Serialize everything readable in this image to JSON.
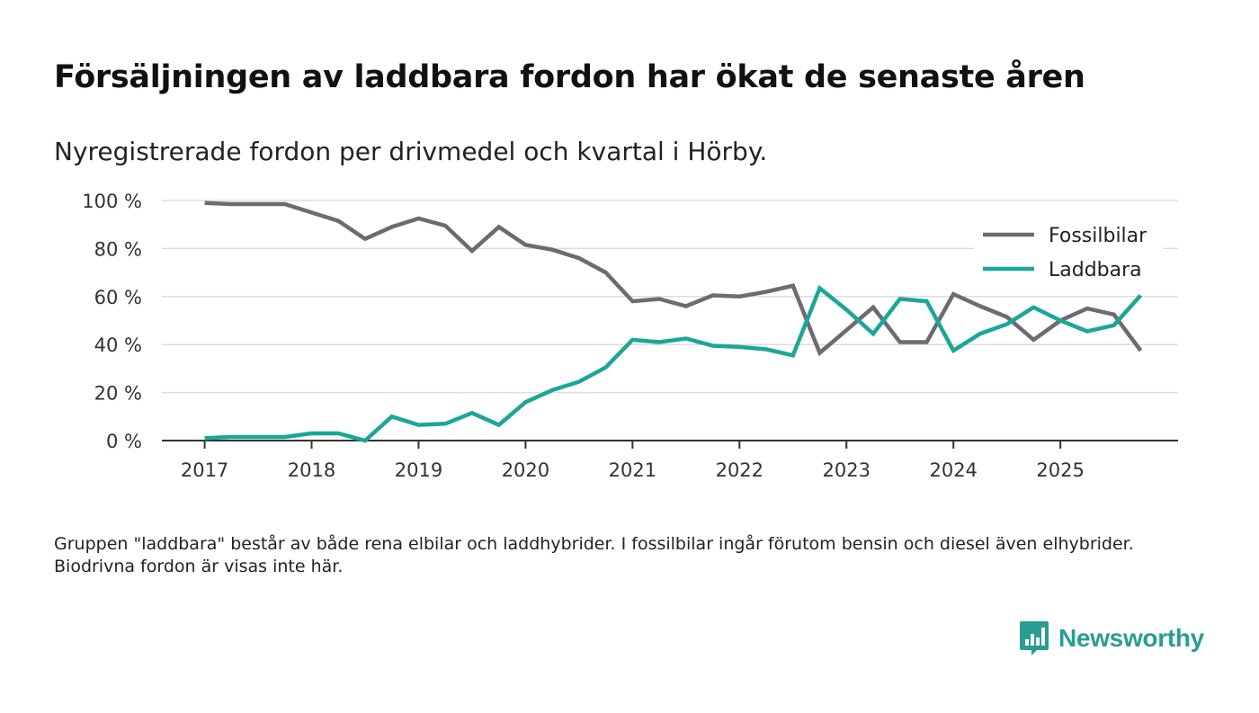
{
  "title": "Försäljningen av laddbara fordon har ökat de senaste åren",
  "subtitle": "Nyregistrerade fordon per drivmedel och kvartal i Hörby.",
  "note": "Gruppen \"laddbara\" består av både rena elbilar och laddhybrider. I fossilbilar ingår förutom bensin och diesel även elhybrider. Biodrivna fordon är visas inte här.",
  "brand": {
    "name": "Newsworthy",
    "icon": "newsworthy-logo-icon",
    "color": "#2a9d92"
  },
  "chart_data": {
    "type": "line",
    "title": "Försäljningen av laddbara fordon har ökat de senaste åren",
    "subtitle": "Nyregistrerade fordon per drivmedel och kvartal i Hörby.",
    "xlabel": "",
    "ylabel": "",
    "x": [
      2017.0,
      2017.25,
      2017.5,
      2017.75,
      2018.0,
      2018.25,
      2018.5,
      2018.75,
      2019.0,
      2019.25,
      2019.5,
      2019.75,
      2020.0,
      2020.25,
      2020.5,
      2020.75,
      2021.0,
      2021.25,
      2021.5,
      2021.75,
      2022.0,
      2022.25,
      2022.5,
      2022.75,
      2023.0,
      2023.25,
      2023.5,
      2023.75,
      2024.0,
      2024.25,
      2024.5,
      2024.75,
      2025.0,
      2025.25,
      2025.5,
      2025.75
    ],
    "xticks": [
      2017,
      2018,
      2019,
      2020,
      2021,
      2022,
      2023,
      2024,
      2025
    ],
    "xtick_labels": [
      "2017",
      "2018",
      "2019",
      "2020",
      "2021",
      "2022",
      "2023",
      "2024",
      "2025"
    ],
    "xlim": [
      2016.6,
      2026.1
    ],
    "yticks": [
      0,
      20,
      40,
      60,
      80,
      100
    ],
    "ytick_labels": [
      "0 %",
      "20 %",
      "40 %",
      "60 %",
      "80 %",
      "100 %"
    ],
    "ylim": [
      0,
      100
    ],
    "grid": true,
    "legend_position": "top-right",
    "series": [
      {
        "name": "Fossilbilar",
        "color": "#6d6b70",
        "values": [
          99,
          98.5,
          98.5,
          98.5,
          95,
          91.5,
          84,
          89,
          92.5,
          89.5,
          79,
          89,
          81.5,
          79.5,
          76,
          70,
          58,
          59,
          56,
          60.5,
          60,
          62,
          64.5,
          36.5,
          46,
          55.5,
          41,
          41,
          61,
          56,
          51.5,
          42,
          50,
          55,
          52.5,
          37.5
        ]
      },
      {
        "name": "Laddbara",
        "color": "#1ca697",
        "values": [
          1,
          1.5,
          1.5,
          1.5,
          3,
          3,
          0,
          10,
          6.5,
          7,
          11.5,
          6.5,
          16,
          21,
          24.5,
          30.5,
          42,
          41,
          42.5,
          39.5,
          39,
          38,
          35.5,
          63.5,
          54.5,
          44.5,
          59,
          58,
          37.5,
          44.5,
          48.5,
          55.5,
          50,
          45.5,
          48,
          60.5
        ]
      }
    ]
  }
}
